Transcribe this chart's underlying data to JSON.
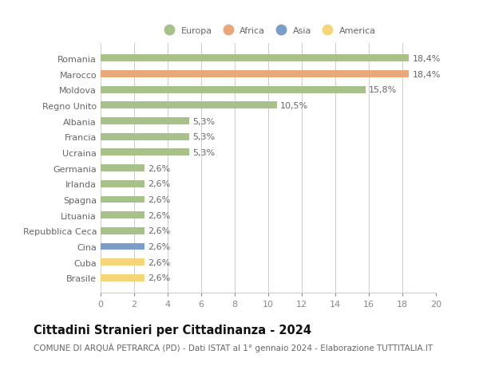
{
  "categories": [
    "Brasile",
    "Cuba",
    "Cina",
    "Repubblica Ceca",
    "Lituania",
    "Spagna",
    "Irlanda",
    "Germania",
    "Ucraina",
    "Francia",
    "Albania",
    "Regno Unito",
    "Moldova",
    "Marocco",
    "Romania"
  ],
  "values": [
    2.6,
    2.6,
    2.6,
    2.6,
    2.6,
    2.6,
    2.6,
    2.6,
    5.3,
    5.3,
    5.3,
    10.5,
    15.8,
    18.4,
    18.4
  ],
  "colors": [
    "#f5d47a",
    "#f5d47a",
    "#7b9ec9",
    "#a8c08a",
    "#a8c08a",
    "#a8c08a",
    "#a8c08a",
    "#a8c08a",
    "#a8c08a",
    "#a8c08a",
    "#a8c08a",
    "#a8c08a",
    "#a8c08a",
    "#e8a87c",
    "#a8c08a"
  ],
  "labels": [
    "2,6%",
    "2,6%",
    "2,6%",
    "2,6%",
    "2,6%",
    "2,6%",
    "2,6%",
    "2,6%",
    "5,3%",
    "5,3%",
    "5,3%",
    "10,5%",
    "15,8%",
    "18,4%",
    "18,4%"
  ],
  "legend": {
    "Europa": "#a8c08a",
    "Africa": "#e8a87c",
    "Asia": "#7b9ec9",
    "America": "#f5d47a"
  },
  "xlim": [
    0,
    20
  ],
  "xticks": [
    0,
    2,
    4,
    6,
    8,
    10,
    12,
    14,
    16,
    18,
    20
  ],
  "title": "Cittadini Stranieri per Cittadinanza - 2024",
  "subtitle": "COMUNE DI ARQUÀ PETRARCA (PD) - Dati ISTAT al 1° gennaio 2024 - Elaborazione TUTTITALIA.IT",
  "background_color": "#ffffff",
  "grid_color": "#cccccc",
  "bar_height": 0.45,
  "label_fontsize": 8,
  "tick_fontsize": 8,
  "title_fontsize": 10.5,
  "subtitle_fontsize": 7.5
}
